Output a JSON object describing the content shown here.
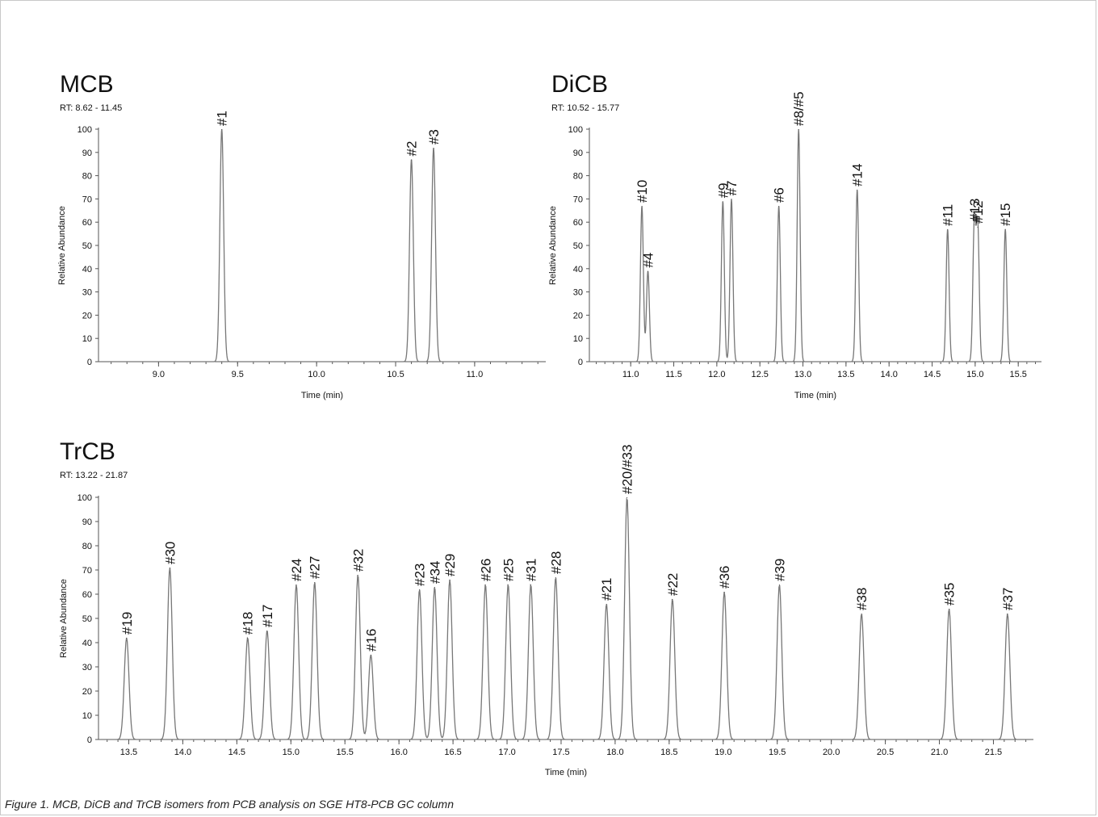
{
  "caption": "Figure 1. MCB, DiCB and TrCB isomers from PCB analysis on SGE HT8-PCB GC column",
  "chart_data": [
    {
      "id": "mcb",
      "type": "line",
      "title": "MCB",
      "subtitle": "RT: 8.62 - 11.45",
      "xlabel": "Time (min)",
      "ylabel": "Relative Abundance",
      "xlim": [
        8.62,
        11.45
      ],
      "ylim": [
        0,
        100
      ],
      "xticks": [
        9.0,
        9.5,
        10.0,
        10.5,
        11.0
      ],
      "yticks": [
        0,
        10,
        20,
        30,
        40,
        50,
        60,
        70,
        80,
        90,
        100
      ],
      "peak_width": 0.012,
      "peaks": [
        {
          "label": "#1",
          "x": 9.4,
          "y": 100
        },
        {
          "label": "#2",
          "x": 10.6,
          "y": 87
        },
        {
          "label": "#3",
          "x": 10.74,
          "y": 92
        }
      ]
    },
    {
      "id": "dicb",
      "type": "line",
      "title": "DiCB",
      "subtitle": "RT: 10.52 - 15.77",
      "xlabel": "Time (min)",
      "ylabel": "Relative Abundance",
      "xlim": [
        10.52,
        15.77
      ],
      "ylim": [
        0,
        100
      ],
      "xticks": [
        11.0,
        11.5,
        12.0,
        12.5,
        13.0,
        13.5,
        14.0,
        14.5,
        15.0,
        15.5
      ],
      "yticks": [
        0,
        10,
        20,
        30,
        40,
        50,
        60,
        70,
        80,
        90,
        100
      ],
      "peak_width": 0.017,
      "peaks": [
        {
          "label": "#10",
          "x": 11.13,
          "y": 67
        },
        {
          "label": "#4",
          "x": 11.2,
          "y": 39
        },
        {
          "label": "#9",
          "x": 12.07,
          "y": 69
        },
        {
          "label": "#7",
          "x": 12.17,
          "y": 70
        },
        {
          "label": "#6",
          "x": 12.72,
          "y": 67
        },
        {
          "label": "#8/#5",
          "x": 12.95,
          "y": 100
        },
        {
          "label": "#14",
          "x": 13.63,
          "y": 74
        },
        {
          "label": "#11",
          "x": 14.68,
          "y": 57
        },
        {
          "label": "#13",
          "x": 14.99,
          "y": 59
        },
        {
          "label": "#12",
          "x": 15.03,
          "y": 58
        },
        {
          "label": "#15",
          "x": 15.35,
          "y": 57
        }
      ]
    },
    {
      "id": "trcb",
      "type": "line",
      "title": "TrCB",
      "subtitle": "RT: 13.22 - 21.87",
      "xlabel": "Time (min)",
      "ylabel": "Relative Abundance",
      "xlim": [
        13.22,
        21.87
      ],
      "ylim": [
        0,
        100
      ],
      "xticks": [
        13.5,
        14.0,
        14.5,
        15.0,
        15.5,
        16.0,
        16.5,
        17.0,
        17.5,
        18.0,
        18.5,
        19.0,
        19.5,
        20.0,
        20.5,
        21.0,
        21.5
      ],
      "yticks": [
        0,
        10,
        20,
        30,
        40,
        50,
        60,
        70,
        80,
        90,
        100
      ],
      "peak_width": 0.022,
      "peaks": [
        {
          "label": "#19",
          "x": 13.48,
          "y": 42
        },
        {
          "label": "#30",
          "x": 13.88,
          "y": 71
        },
        {
          "label": "#18",
          "x": 14.6,
          "y": 42
        },
        {
          "label": "#17",
          "x": 14.78,
          "y": 45
        },
        {
          "label": "#24",
          "x": 15.05,
          "y": 64
        },
        {
          "label": "#27",
          "x": 15.22,
          "y": 65
        },
        {
          "label": "#32",
          "x": 15.62,
          "y": 68
        },
        {
          "label": "#16",
          "x": 15.74,
          "y": 35
        },
        {
          "label": "#23",
          "x": 16.19,
          "y": 62
        },
        {
          "label": "#34",
          "x": 16.33,
          "y": 63
        },
        {
          "label": "#29",
          "x": 16.47,
          "y": 66
        },
        {
          "label": "#26",
          "x": 16.8,
          "y": 64
        },
        {
          "label": "#25",
          "x": 17.01,
          "y": 64
        },
        {
          "label": "#31",
          "x": 17.22,
          "y": 64
        },
        {
          "label": "#28",
          "x": 17.45,
          "y": 67
        },
        {
          "label": "#21",
          "x": 17.92,
          "y": 56
        },
        {
          "label": "#20/#33",
          "x": 18.11,
          "y": 100
        },
        {
          "label": "#22",
          "x": 18.53,
          "y": 58
        },
        {
          "label": "#36",
          "x": 19.01,
          "y": 61
        },
        {
          "label": "#39",
          "x": 19.52,
          "y": 64
        },
        {
          "label": "#38",
          "x": 20.28,
          "y": 52
        },
        {
          "label": "#35",
          "x": 21.09,
          "y": 54
        },
        {
          "label": "#37",
          "x": 21.63,
          "y": 52
        }
      ]
    }
  ]
}
